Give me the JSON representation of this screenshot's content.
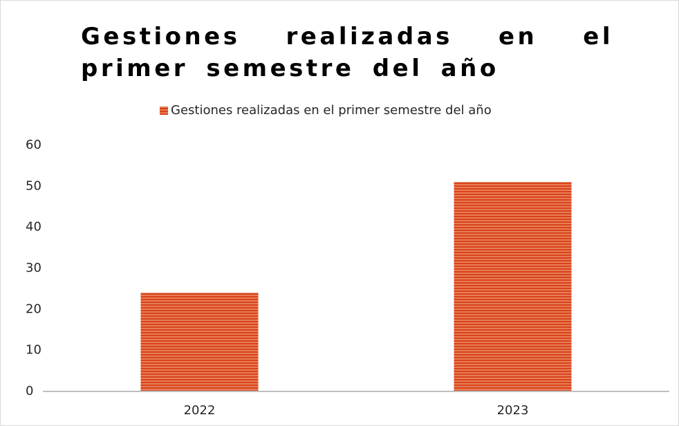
{
  "chart_data": {
    "type": "bar",
    "title": "Gestiones realizadas en el primer semestre del año",
    "categories": [
      "2022",
      "2023"
    ],
    "series": [
      {
        "name": "Gestiones realizadas en el primer semestre del año",
        "color": "#d9421a",
        "values": [
          24,
          51
        ]
      }
    ],
    "ylim": [
      0,
      60
    ],
    "yticks": [
      0,
      10,
      20,
      30,
      40,
      50,
      60
    ],
    "grid": false,
    "legend": "top"
  }
}
